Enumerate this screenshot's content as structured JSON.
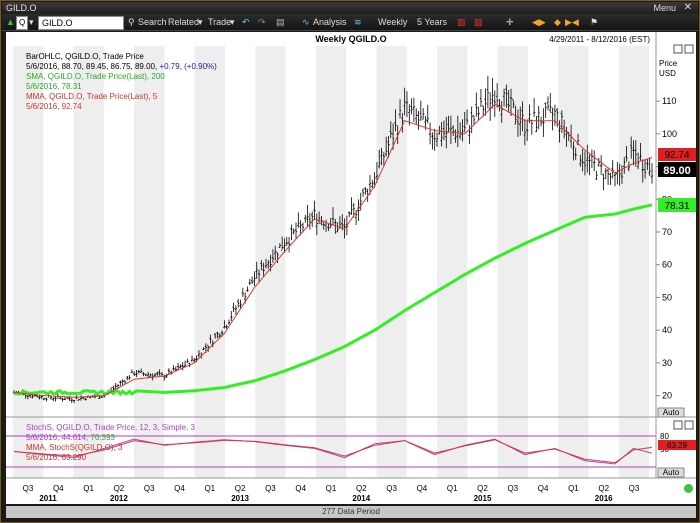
{
  "window": {
    "title": "GILD.O",
    "menu_label": "Menu",
    "close_glyph": "✕"
  },
  "toolbar": {
    "symbol_prefix": "Q",
    "symbol_value": "GILD.O",
    "search": "Search",
    "related": "Related",
    "trade": "Trade",
    "analysis": "Analysis",
    "frequency": "Weekly",
    "range": "5 Years"
  },
  "header": {
    "title": "Weekly QGILD.O",
    "date_range": "4/29/2011 - 8/12/2016 (EST)"
  },
  "legend": {
    "main": [
      {
        "text": "BarOHLC, QGILD.O, Trade Price",
        "color": "#000000"
      },
      {
        "text": "5/6/2016, 88.70, 89.45, 86.75, 89.00, ",
        "color": "#000000",
        "extra": "+0.79, (+0.90%)",
        "extra_color": "#1a1aa0"
      },
      {
        "text": "SMA, QGILD.O, Trade Price(Last), 200",
        "color": "#22aa22"
      },
      {
        "text": "5/6/2016, 78.31",
        "color": "#22aa22"
      },
      {
        "text": "MMA, QGILD.O, Trade Price(Last), 5",
        "color": "#c0392b"
      },
      {
        "text": "5/6/2016, 92.74",
        "color": "#c0392b"
      }
    ],
    "stoch": [
      {
        "text": "StochS, QGILD.O, Trade Price, 12, 3, Simple, 3",
        "color": "#b040c0"
      },
      {
        "text": "5/6/2016, 44.614, ",
        "color": "#b040c0",
        "extra": "70.393",
        "extra_color": "#2aa52a"
      },
      {
        "text": "MMA, StochS(QGILD.O), 3",
        "color": "#c0392b"
      },
      {
        "text": "5/6/2016, 63.290",
        "color": "#c0392b"
      }
    ]
  },
  "axis": {
    "price_label_1": "Price",
    "price_label_2": "USD",
    "auto_label": "Auto",
    "ymin": 15,
    "ymax": 125,
    "yticks": [
      20,
      30,
      40,
      50,
      60,
      70,
      80,
      90,
      100,
      110
    ],
    "stoch_ticks": [
      "80",
      "50"
    ],
    "x_quarters": [
      "Q3",
      "Q4",
      "Q1",
      "Q2",
      "Q3",
      "Q4",
      "Q1",
      "Q2",
      "Q3",
      "Q4",
      "Q1",
      "Q2",
      "Q3",
      "Q4",
      "Q1",
      "Q2",
      "Q3",
      "Q4",
      "Q1",
      "Q2",
      "Q3"
    ],
    "x_years": [
      "2011",
      "2012",
      "2013",
      "2014",
      "2015",
      "2016"
    ]
  },
  "markers": {
    "mma_value": "92.74",
    "last_price": "89.00",
    "sma_value": "78.31",
    "stoch_mma": "63.29"
  },
  "status": {
    "data_period": "277 Data Period"
  },
  "colors": {
    "sma": "#33ee22",
    "mma": "#d63b2f",
    "bars": "#000000",
    "stoch": "#b040c0",
    "stoch_mma": "#d63b2f",
    "accent": "#e02020"
  },
  "chart_data": {
    "type": "line",
    "title": "Weekly QGILD.O",
    "ylabel": "Price USD",
    "ylim": [
      15,
      125
    ],
    "x": [
      0,
      13,
      26,
      39,
      52,
      65,
      78,
      91,
      104,
      117,
      130,
      143,
      156,
      169,
      182,
      195,
      208,
      221,
      234,
      247,
      260,
      268,
      276
    ],
    "series": [
      {
        "name": "QGILD.O Trade Price",
        "values": [
          21,
          19.5,
          19,
          20,
          27,
          26,
          31,
          41,
          56,
          67,
          75,
          71,
          87,
          108,
          100,
          101,
          113,
          103,
          106,
          92,
          86,
          94,
          89
        ]
      },
      {
        "name": "SMA 200",
        "values": [
          null,
          null,
          null,
          null,
          21.5,
          21,
          21.5,
          22.5,
          24.5,
          27.5,
          31,
          35,
          40,
          46,
          51.5,
          57,
          62,
          66.5,
          70.5,
          74.5,
          75.5,
          77,
          78.31
        ]
      },
      {
        "name": "MMA 5",
        "values": [
          21,
          20,
          19.5,
          20,
          25,
          26,
          30,
          39,
          53,
          64,
          74,
          71,
          84,
          104,
          101,
          100,
          109,
          104,
          104,
          95,
          88,
          91,
          92.74
        ]
      }
    ],
    "stoch_series": [
      {
        "name": "StochS 12, 3, Simple, 3",
        "values": [
          50,
          40,
          30,
          60,
          90,
          70,
          80,
          88,
          82,
          70,
          60,
          30,
          75,
          85,
          40,
          70,
          90,
          40,
          60,
          20,
          10,
          60,
          44.614
        ]
      },
      {
        "name": "MMA StochS 3",
        "values": [
          50,
          42,
          35,
          55,
          85,
          72,
          78,
          86,
          83,
          72,
          62,
          35,
          70,
          85,
          45,
          68,
          88,
          45,
          58,
          25,
          14,
          55,
          63.29
        ]
      }
    ]
  }
}
